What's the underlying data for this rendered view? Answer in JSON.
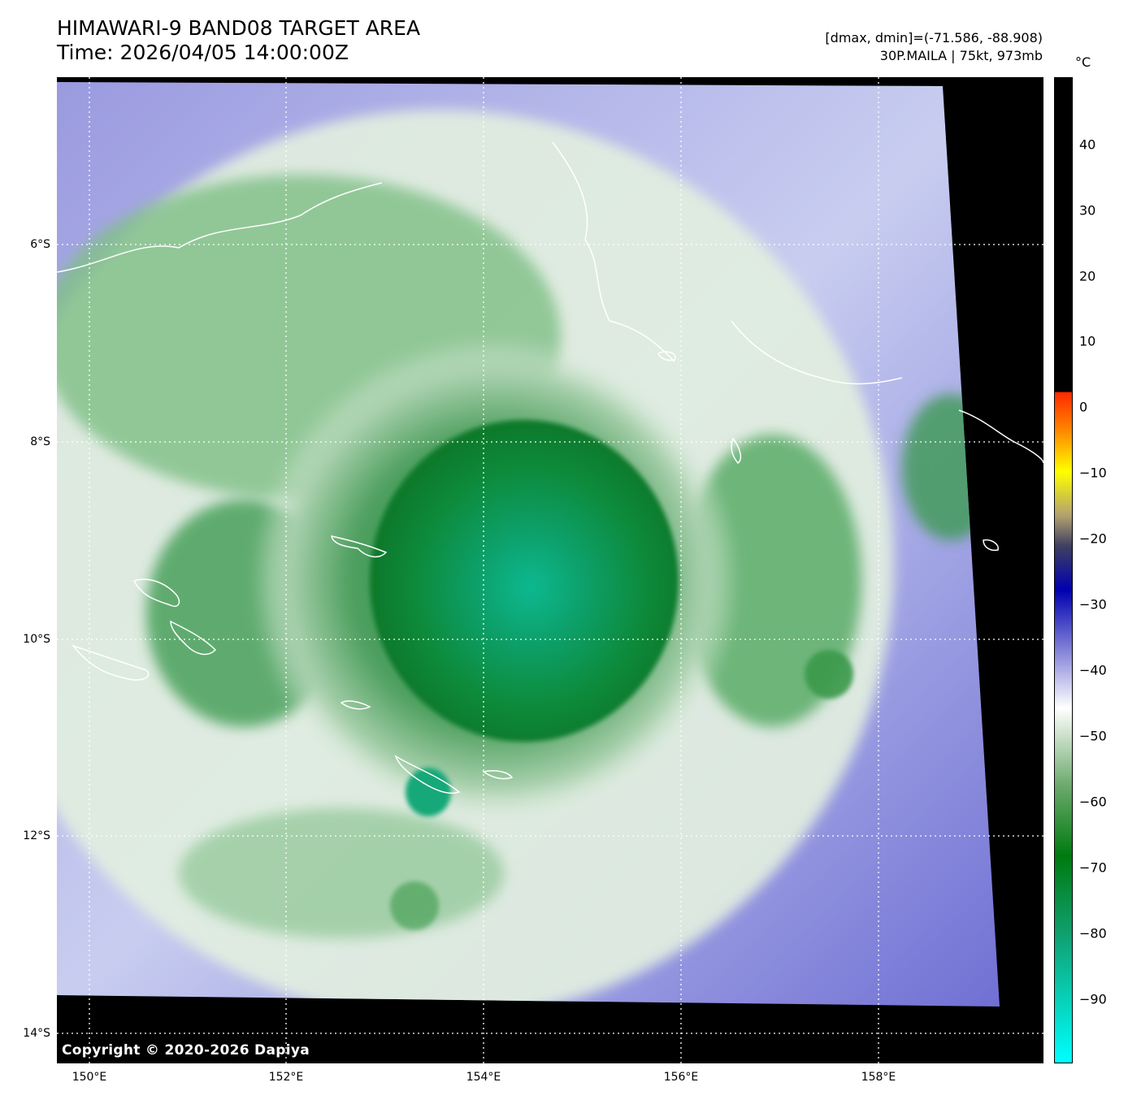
{
  "title": {
    "line1": "HIMAWARI-9 BAND08 TARGET AREA",
    "line2": "Time: 2026/04/05 14:00:00Z"
  },
  "info": {
    "range": "[dmax, dmin]=(-71.586, -88.908)",
    "storm": "30P.MAILA | 75kt, 973mb"
  },
  "colorbar": {
    "unit": "°C",
    "ticks": [
      "40",
      "30",
      "20",
      "10",
      "0",
      "−10",
      "−20",
      "−30",
      "−40",
      "−50",
      "−60",
      "−70",
      "−80",
      "−90"
    ],
    "tick_values": [
      40,
      30,
      20,
      10,
      0,
      -10,
      -20,
      -30,
      -40,
      -50,
      -60,
      -70,
      -80,
      -90
    ],
    "vmin": -100,
    "vmax": 50
  },
  "axes": {
    "lat_labels": [
      "6°S",
      "8°S",
      "10°S",
      "12°S",
      "14°S"
    ],
    "lat_values": [
      -6,
      -8,
      -10,
      -12,
      -14
    ],
    "lon_labels": [
      "150°E",
      "152°E",
      "154°E",
      "156°E",
      "158°E"
    ],
    "lon_values": [
      150,
      152,
      154,
      156,
      158
    ],
    "lon_range": [
      149.67,
      159.67
    ],
    "lat_range": [
      -4.34,
      -14.34
    ]
  },
  "copyright": "Copyright © 2020-2026 Dapiya",
  "colors": {
    "background_nodata": "#000000",
    "coastline": "#ffffff",
    "gridline": "#ffffff",
    "cold_core": "#00b080",
    "cloud_green": "#0a7a2a",
    "warm_cloud": "#7a7ad8"
  }
}
